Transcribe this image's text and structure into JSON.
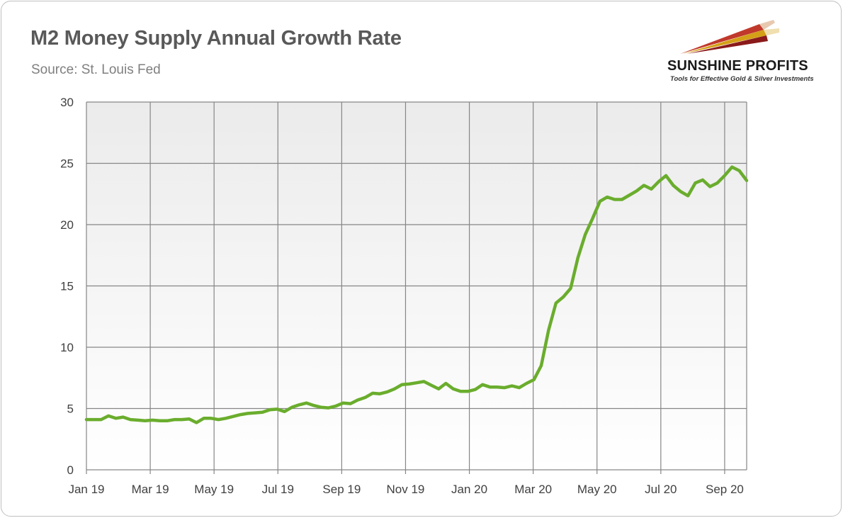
{
  "title": "M2 Money Supply Annual Growth Rate",
  "subtitle": "Source: St. Louis Fed",
  "logo": {
    "name": "SUNSHINE PROFITS",
    "tagline": "Tools for Effective Gold & Silver Investments",
    "colors": [
      "#c0392b",
      "#d4a017",
      "#8b1a1a"
    ]
  },
  "colors": {
    "line": "#6aad2d",
    "grid": "#808080",
    "plot_bg_top": "#ececec",
    "plot_bg_bottom": "#ffffff"
  },
  "chart_data": {
    "type": "line",
    "title": "M2 Money Supply Annual Growth Rate",
    "xlabel": "",
    "ylabel": "",
    "ylim": [
      0,
      30
    ],
    "yticks": [
      0,
      5,
      10,
      15,
      20,
      25,
      30
    ],
    "xticks": [
      "Jan 19",
      "Mar 19",
      "May 19",
      "Jul 19",
      "Sep 19",
      "Nov 19",
      "Jan 20",
      "Mar 20",
      "May 20",
      "Jul 20",
      "Sep 20"
    ],
    "x_unit": "weeks from Jan 19",
    "grid": true,
    "legend": "none",
    "series": [
      {
        "name": "",
        "values": [
          4.1,
          4.1,
          4.1,
          4.4,
          4.2,
          4.3,
          4.1,
          4.05,
          4.0,
          4.05,
          4.0,
          4.0,
          4.1,
          4.1,
          4.15,
          3.85,
          4.2,
          4.2,
          4.1,
          4.2,
          4.35,
          4.5,
          4.6,
          4.65,
          4.7,
          4.9,
          4.95,
          4.75,
          5.1,
          5.3,
          5.45,
          5.25,
          5.1,
          5.05,
          5.2,
          5.45,
          5.4,
          5.7,
          5.9,
          6.25,
          6.2,
          6.35,
          6.6,
          6.95,
          7.0,
          7.1,
          7.2,
          6.9,
          6.6,
          7.05,
          6.6,
          6.4,
          6.4,
          6.55,
          6.95,
          6.75,
          6.75,
          6.7,
          6.85,
          6.7,
          7.05,
          7.35,
          8.5,
          11.4,
          13.6,
          14.1,
          14.8,
          17.3,
          19.2,
          20.5,
          21.9,
          22.25,
          22.05,
          22.05,
          22.4,
          22.75,
          23.2,
          22.9,
          23.5,
          24.0,
          23.2,
          22.7,
          22.35,
          23.4,
          23.65,
          23.1,
          23.4,
          24.0,
          24.7,
          24.4,
          23.6
        ]
      }
    ]
  }
}
